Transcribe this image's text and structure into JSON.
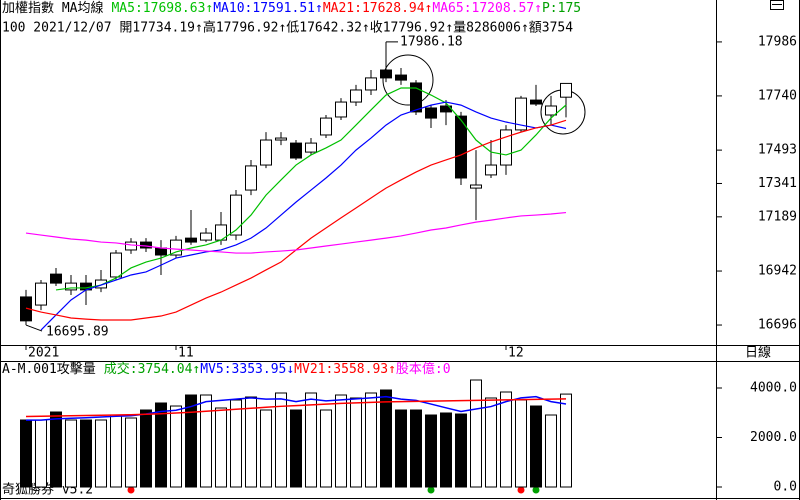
{
  "chart_data": [
    {
      "type": "candlestick",
      "title": "加權指數 MA均線",
      "subtitle": "100 2021/12/07 開17734.19↑高17796.92↑低17642.32↑收17796.92↑量8286006↑額3754",
      "extra": {
        "text": "P:175",
        "color": "#00a000"
      },
      "categories": [
        "2021",
        null,
        null,
        null,
        null,
        null,
        null,
        null,
        null,
        null,
        "11",
        null,
        null,
        null,
        null,
        null,
        null,
        null,
        null,
        null,
        null,
        null,
        null,
        null,
        null,
        null,
        null,
        null,
        null,
        null,
        null,
        null,
        "12",
        null,
        null,
        null,
        null
      ],
      "open": [
        16824,
        16787,
        16928,
        16856,
        16887,
        16865,
        16915,
        17038,
        17074,
        17047,
        17015,
        17092,
        17083,
        17083,
        17106,
        17311,
        17425,
        17539,
        17525,
        17484,
        17562,
        17644,
        17712,
        17767,
        17858,
        17835,
        17799,
        17685,
        17694,
        17648,
        17320,
        17380,
        17425,
        17585,
        17721,
        17653,
        17734.19
      ],
      "high": [
        16856,
        16901,
        16956,
        16924,
        16924,
        16947,
        17038,
        17092,
        17092,
        17083,
        17102,
        17220,
        17138,
        17211,
        17311,
        17448,
        17575,
        17575,
        17539,
        17548,
        17653,
        17730,
        17790,
        17858,
        17986.18,
        17867,
        17812,
        17698,
        17721,
        17667,
        17493,
        17539,
        17607,
        17740,
        17790,
        17740,
        17796.92
      ],
      "low": [
        16695.89,
        16764,
        16874,
        16833,
        16787,
        16846,
        16901,
        17020,
        17029,
        16924,
        17001,
        17061,
        17074,
        17061,
        17083,
        17288,
        17411,
        17516,
        17448,
        17471,
        17548,
        17630,
        17694,
        17744,
        17803,
        17790,
        17653,
        17594,
        17607,
        17334,
        17174,
        17366,
        17380,
        17575,
        17694,
        17607,
        17642.32
      ],
      "close": [
        16715,
        16887,
        16887,
        16887,
        16856,
        16901,
        17024,
        17074,
        17047,
        17015,
        17083,
        17074,
        17115,
        17152,
        17288,
        17421,
        17539,
        17548,
        17457,
        17525,
        17639,
        17712,
        17767,
        17822,
        17822,
        17812,
        17667,
        17639,
        17667,
        17366,
        17334,
        17425,
        17585,
        17730,
        17703,
        17694,
        17796.92
      ],
      "up_color": "#ffffff",
      "down_color": "#000000",
      "annotations": [
        "17986.18",
        "16695.89"
      ],
      "series": [
        {
          "name": "MA5:17698.63↑",
          "color": "#00c000",
          "values": [
            null,
            null,
            16856,
            16865,
            16865,
            16878,
            16910,
            16956,
            16983,
            17001,
            17029,
            17047,
            17061,
            17083,
            17129,
            17197,
            17288,
            17357,
            17425,
            17471,
            17503,
            17539,
            17607,
            17676,
            17744,
            17776,
            17776,
            17744,
            17708,
            17630,
            17539,
            17484,
            17471,
            17493,
            17562,
            17639,
            17698.63
          ]
        },
        {
          "name": "MA10:17591.51↑",
          "color": "#0000ff",
          "values": [
            null,
            16673,
            16742,
            16810,
            16856,
            16878,
            16901,
            16924,
            16938,
            16969,
            17001,
            17015,
            17029,
            17038,
            17061,
            17092,
            17138,
            17197,
            17256,
            17311,
            17366,
            17425,
            17493,
            17548,
            17607,
            17653,
            17676,
            17698,
            17712,
            17698,
            17667,
            17639,
            17621,
            17607,
            17594,
            17607,
            17591.51
          ]
        },
        {
          "name": "MA21:17628.94↑",
          "color": "#ff0000",
          "values": [
            16773,
            16755,
            16742,
            16728,
            16723,
            16719,
            16719,
            16719,
            16728,
            16737,
            16755,
            16787,
            16819,
            16846,
            16878,
            16910,
            16947,
            16983,
            17038,
            17092,
            17138,
            17184,
            17229,
            17275,
            17320,
            17357,
            17393,
            17425,
            17448,
            17471,
            17503,
            17530,
            17553,
            17575,
            17594,
            17607,
            17628.94
          ]
        },
        {
          "name": "MA65:17208.57↑",
          "color": "#ff00ff",
          "values": [
            17115,
            17106,
            17097,
            17088,
            17083,
            17074,
            17070,
            17061,
            17056,
            17047,
            17042,
            17038,
            17033,
            17029,
            17024,
            17024,
            17029,
            17033,
            17038,
            17047,
            17056,
            17065,
            17074,
            17083,
            17092,
            17102,
            17115,
            17129,
            17138,
            17152,
            17165,
            17174,
            17184,
            17193,
            17197,
            17202,
            17208.57
          ]
        }
      ],
      "ylim": [
        16605,
        18177
      ],
      "yticks": [
        17986,
        17740,
        17493,
        17341,
        17189,
        16942,
        16696
      ]
    },
    {
      "type": "bar",
      "title": "A-M.001攻擊量",
      "period": "日線",
      "footer": "奇狐勝券 v5.2",
      "extra": {
        "text": "股本億:0",
        "color": "#ff00ff"
      },
      "series": [
        {
          "name": "成交:3754.04↑",
          "color": "#00a000",
          "values": [
            2707,
            2707,
            3030,
            2707,
            2707,
            2707,
            2909,
            2788,
            3111,
            3394,
            3272,
            3717,
            3717,
            3192,
            3515,
            3636,
            3111,
            3798,
            3111,
            3798,
            3111,
            3717,
            3596,
            3798,
            3919,
            3111,
            3111,
            2909,
            2990,
            2949,
            4323,
            3596,
            3838,
            3515,
            3272,
            2909,
            3754.04
          ]
        },
        {
          "name": "MV5:3353.95↓",
          "color": "#0000ff",
          "values": [
            2700,
            2700,
            2750,
            2780,
            2800,
            2830,
            2860,
            2880,
            2950,
            3050,
            3100,
            3250,
            3450,
            3500,
            3550,
            3600,
            3550,
            3560,
            3450,
            3550,
            3480,
            3520,
            3560,
            3600,
            3650,
            3550,
            3500,
            3350,
            3200,
            3050,
            3150,
            3250,
            3450,
            3600,
            3650,
            3450,
            3353.95
          ]
        },
        {
          "name": "MV21:3558.93↑",
          "color": "#ff0000",
          "values": [
            2850,
            2860,
            2870,
            2880,
            2890,
            2900,
            2910,
            2920,
            2940,
            2960,
            2990,
            3020,
            3060,
            3100,
            3140,
            3180,
            3220,
            3260,
            3290,
            3320,
            3350,
            3380,
            3400,
            3420,
            3440,
            3450,
            3460,
            3470,
            3480,
            3490,
            3500,
            3510,
            3520,
            3530,
            3540,
            3550,
            3558.93
          ]
        }
      ],
      "ylim": [
        -323,
        4323
      ],
      "yticks": [
        {
          "value": 4000,
          "label": "4000.0"
        },
        {
          "value": 2000,
          "label": "2000.0"
        },
        {
          "value": 0,
          "label": "0.0"
        }
      ]
    }
  ]
}
